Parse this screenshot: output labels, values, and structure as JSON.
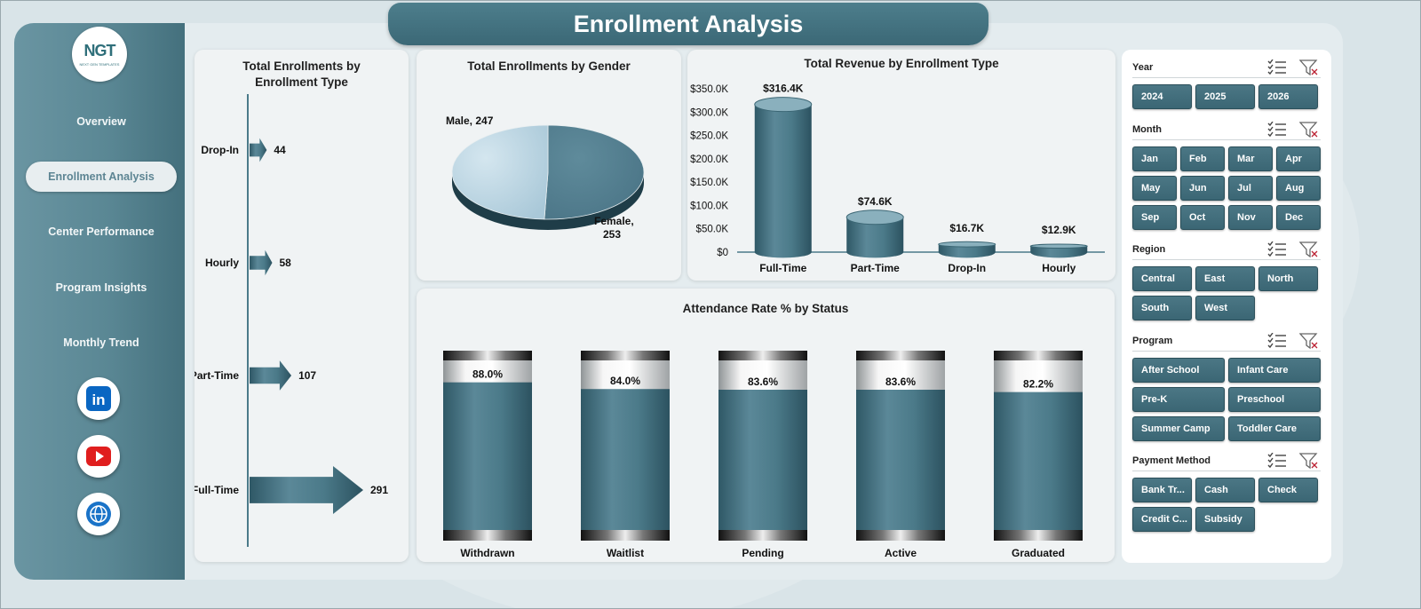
{
  "title": "Enrollment Analysis",
  "logo": {
    "mark": "NGT",
    "subtitle": "NEXT GEN TEMPLATES"
  },
  "sidebar": {
    "items": [
      {
        "label": "Overview",
        "active": false
      },
      {
        "label": "Enrollment Analysis",
        "active": true
      },
      {
        "label": "Center Performance",
        "active": false
      },
      {
        "label": "Program Insights",
        "active": false
      },
      {
        "label": "Monthly Trend",
        "active": false
      }
    ],
    "social": [
      {
        "icon": "linkedin-icon",
        "text": "in",
        "color": "#0a66c2"
      },
      {
        "icon": "youtube-icon",
        "color": "#e01e1e"
      },
      {
        "icon": "globe-icon",
        "color": "#1a73c8"
      }
    ]
  },
  "charts": {
    "enrollment_type": {
      "title_line1": "Total Enrollments by",
      "title_line2": "Enrollment Type",
      "chart_data": {
        "type": "bar",
        "orientation": "horizontal",
        "categories": [
          "Drop-In",
          "Hourly",
          "Part-Time",
          "Full-Time"
        ],
        "values": [
          44,
          58,
          107,
          291
        ],
        "value_labels": [
          "44",
          "58",
          "107",
          "291"
        ],
        "color": "#4b7a89"
      }
    },
    "gender": {
      "title": "Total Enrollments by Gender",
      "chart_data": {
        "type": "pie",
        "categories": [
          "Male",
          "Female"
        ],
        "values": [
          247,
          253
        ],
        "labels": [
          "Male, 247",
          "Female,",
          "253"
        ],
        "colors": [
          "#a9c8d8",
          "#4a7486"
        ]
      }
    },
    "revenue": {
      "title": "Total Revenue  by Enrollment Type",
      "chart_data": {
        "type": "bar",
        "categories": [
          "Full-Time",
          "Part-Time",
          "Drop-In",
          "Hourly"
        ],
        "values": [
          316.4,
          74.6,
          16.7,
          12.9
        ],
        "value_labels": [
          "$316.4K",
          "$74.6K",
          "$16.7K",
          "$12.9K"
        ],
        "unit": "$K",
        "ylim": [
          0,
          350
        ],
        "yticks": [
          "$0",
          "$50.0K",
          "$100.0K",
          "$150.0K",
          "$200.0K",
          "$250.0K",
          "$300.0K",
          "$350.0K"
        ],
        "color": "#4b7a89"
      }
    },
    "attendance": {
      "title": "Attendance Rate % by Status",
      "chart_data": {
        "type": "bar",
        "categories": [
          "Withdrawn",
          "Waitlist",
          "Pending",
          "Active",
          "Graduated"
        ],
        "values": [
          88.0,
          84.0,
          83.6,
          83.6,
          82.2
        ],
        "value_labels": [
          "88.0%",
          "84.0%",
          "83.6%",
          "83.6%",
          "82.2%"
        ],
        "ylim": [
          0,
          100
        ],
        "color": "#4b7a89"
      }
    }
  },
  "slicers": [
    {
      "label": "Year",
      "items": [
        "2024",
        "2025",
        "2026"
      ]
    },
    {
      "label": "Month",
      "items": [
        "Jan",
        "Feb",
        "Mar",
        "Apr",
        "May",
        "Jun",
        "Jul",
        "Aug",
        "Sep",
        "Oct",
        "Nov",
        "Dec"
      ]
    },
    {
      "label": "Region",
      "items": [
        "Central",
        "East",
        "North",
        "South",
        "West"
      ]
    },
    {
      "label": "Program",
      "items": [
        "After School",
        "Infant Care",
        "Pre-K",
        "Preschool",
        "Summer Camp",
        "Toddler Care"
      ]
    },
    {
      "label": "Payment Method",
      "items": [
        "Bank Tr...",
        "Cash",
        "Check",
        "Credit C...",
        "Subsidy"
      ]
    }
  ]
}
